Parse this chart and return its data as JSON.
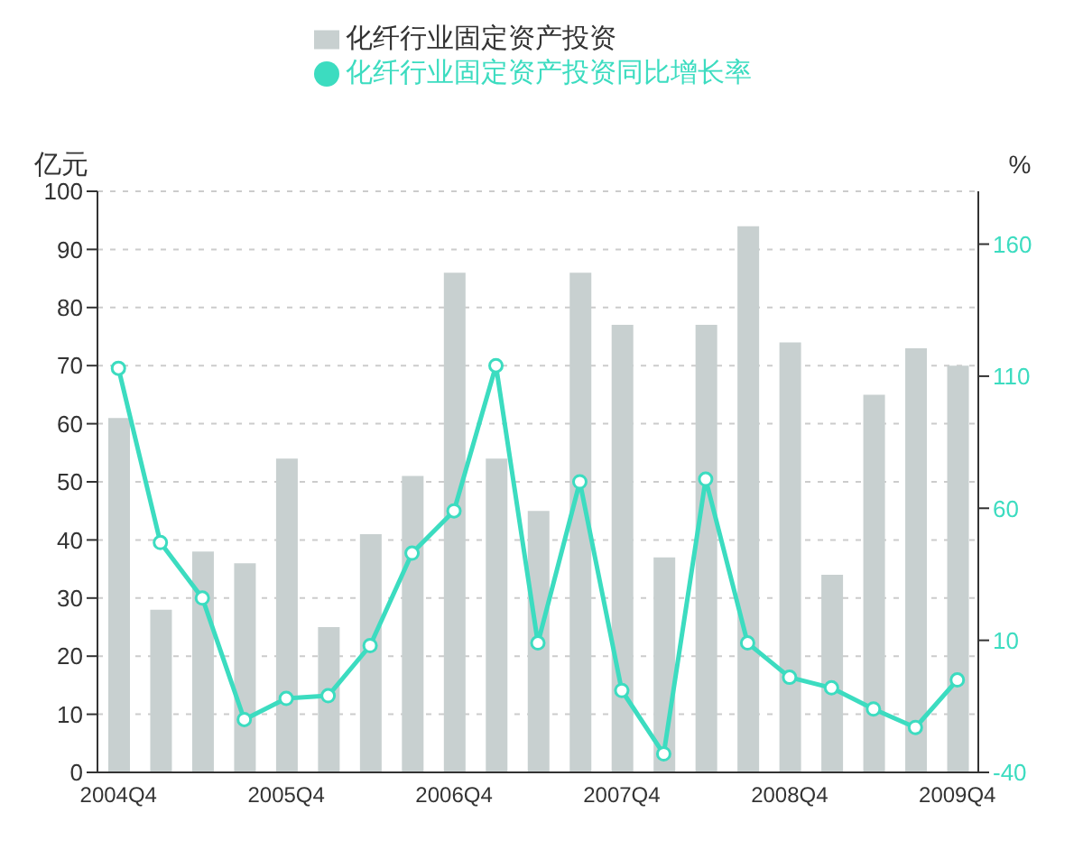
{
  "chart_data": {
    "type": "bar",
    "ylabel": "亿元",
    "y2label": "%",
    "categories": [
      "2004Q4",
      null,
      null,
      null,
      "2005Q4",
      null,
      null,
      null,
      "2006Q4",
      null,
      null,
      null,
      "2007Q4",
      null,
      null,
      null,
      "2008Q4",
      null,
      null,
      null,
      "2009Q4"
    ],
    "series": [
      {
        "name": "化纤行业固定资产投资",
        "color": "#c8d0d0",
        "values": [
          61,
          28,
          38,
          36,
          54,
          25,
          41,
          51,
          86,
          54,
          45,
          86,
          77,
          37,
          77,
          94,
          74,
          34,
          65,
          73,
          70
        ]
      },
      {
        "name": "化纤行业固定资产投资同比增长率",
        "type": "line",
        "axis": "y2",
        "color": "#3cdcc0",
        "marker": "circle",
        "values": [
          113,
          47,
          26,
          -20,
          -12,
          -11,
          8,
          43,
          59,
          114,
          9,
          70,
          -9,
          -33,
          71,
          9,
          -4,
          -8,
          -16,
          -23,
          -5
        ]
      }
    ],
    "ylim": [
      0,
      100
    ],
    "yticks": [
      0,
      10,
      20,
      30,
      40,
      50,
      60,
      70,
      80,
      90,
      100
    ],
    "y2lim": [
      -40,
      180
    ],
    "y2ticks": [
      -40,
      10,
      60,
      110,
      160
    ],
    "grid": "y",
    "legend": "top"
  }
}
